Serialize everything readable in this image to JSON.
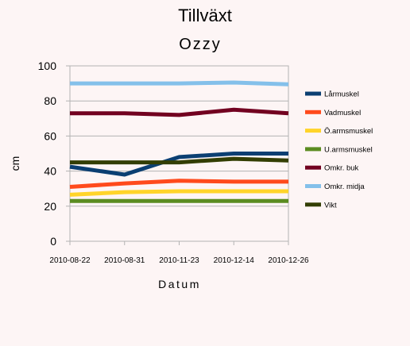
{
  "chart_data": {
    "type": "line",
    "title": "Tillväxt",
    "subtitle": "Ozzy",
    "xlabel": "Datum",
    "ylabel": "cm",
    "categories": [
      "2010-08-22",
      "2010-08-31",
      "2010-11-23",
      "2010-12-14",
      "2010-12-26"
    ],
    "ylim": [
      0,
      100
    ],
    "yticks": [
      0,
      20,
      40,
      60,
      80,
      100
    ],
    "grid": "horizontal",
    "legend_position": "right",
    "series": [
      {
        "name": "Lårmuskel",
        "color": "#0b3f72",
        "values": [
          42.5,
          38,
          48,
          50,
          50
        ]
      },
      {
        "name": "Vadmuskel",
        "color": "#ff4a1c",
        "values": [
          31,
          33,
          34.5,
          34,
          34
        ]
      },
      {
        "name": "Ö.armsmuskel",
        "color": "#ffd42a",
        "values": [
          26.5,
          28,
          28.5,
          28.5,
          28.5
        ]
      },
      {
        "name": "U.armsmuskel",
        "color": "#5b8c21",
        "values": [
          23,
          23,
          23,
          23,
          23
        ]
      },
      {
        "name": "Omkr. buk",
        "color": "#720020",
        "values": [
          73,
          73,
          72,
          75,
          73
        ]
      },
      {
        "name": "Omkr. midja",
        "color": "#84c0ea",
        "values": [
          90,
          90,
          90,
          90.5,
          89.5
        ]
      },
      {
        "name": "Vikt",
        "color": "#333e03",
        "values": [
          45,
          45,
          45,
          47,
          46
        ]
      }
    ]
  }
}
